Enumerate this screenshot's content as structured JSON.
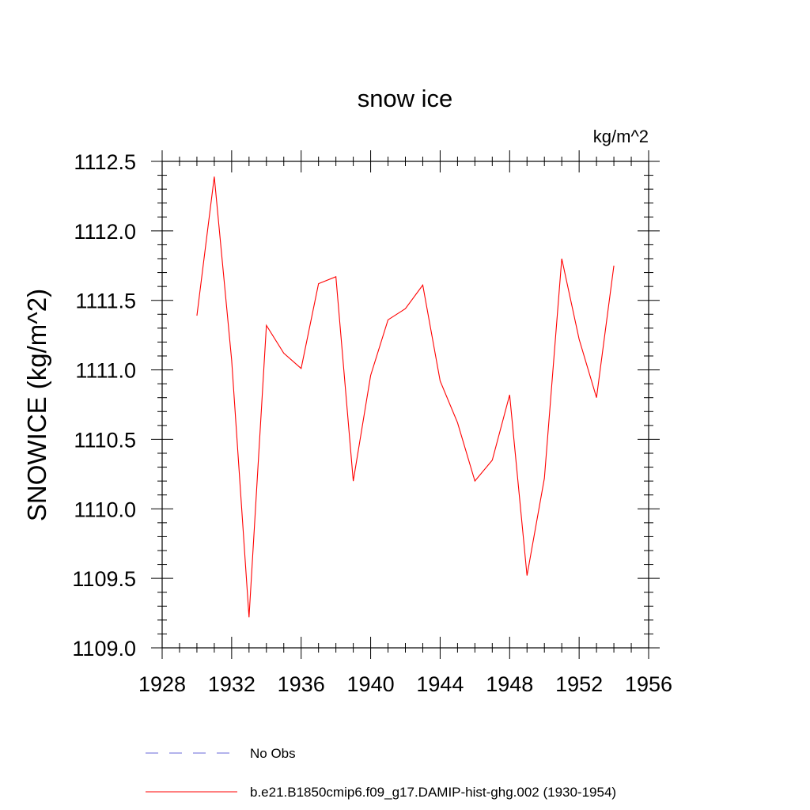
{
  "chart_data": {
    "type": "line",
    "title": "snow ice",
    "units_label": "kg/m^2",
    "ylabel": "SNOWICE  (kg/m^2)",
    "xlabel": "",
    "xlim": [
      1928,
      1956
    ],
    "ylim": [
      1109.0,
      1112.5
    ],
    "x_ticks": [
      "1928",
      "1932",
      "1936",
      "1940",
      "1944",
      "1948",
      "1952",
      "1956"
    ],
    "y_ticks": [
      "1109.0",
      "1109.5",
      "1110.0",
      "1110.5",
      "1111.0",
      "1111.5",
      "1112.0",
      "1112.5"
    ],
    "grid": false,
    "x": [
      1930,
      1931,
      1932,
      1933,
      1934,
      1935,
      1936,
      1937,
      1938,
      1939,
      1940,
      1941,
      1942,
      1943,
      1944,
      1945,
      1946,
      1947,
      1948,
      1949,
      1950,
      1951,
      1952,
      1953,
      1954
    ],
    "series": [
      {
        "name": "b.e21.B1850cmip6.f09_g17.DAMIP-hist-ghg.002 (1930-1954)",
        "color": "#ff0000",
        "style": "solid",
        "values": [
          1111.39,
          1112.39,
          1111.07,
          1109.22,
          1111.32,
          1111.12,
          1111.01,
          1111.62,
          1111.67,
          1110.2,
          1110.96,
          1111.36,
          1111.44,
          1111.61,
          1110.92,
          1110.62,
          1110.2,
          1110.35,
          1110.82,
          1109.52,
          1110.22,
          1111.8,
          1111.22,
          1110.8,
          1111.75
        ]
      }
    ],
    "legend": {
      "placement": "bottom",
      "entries": [
        {
          "label": "No Obs",
          "color": "#6a6ad8",
          "style": "dashed"
        },
        {
          "label": "b.e21.B1850cmip6.f09_g17.DAMIP-hist-ghg.002 (1930-1954)",
          "color": "#ff0000",
          "style": "solid"
        }
      ]
    }
  }
}
